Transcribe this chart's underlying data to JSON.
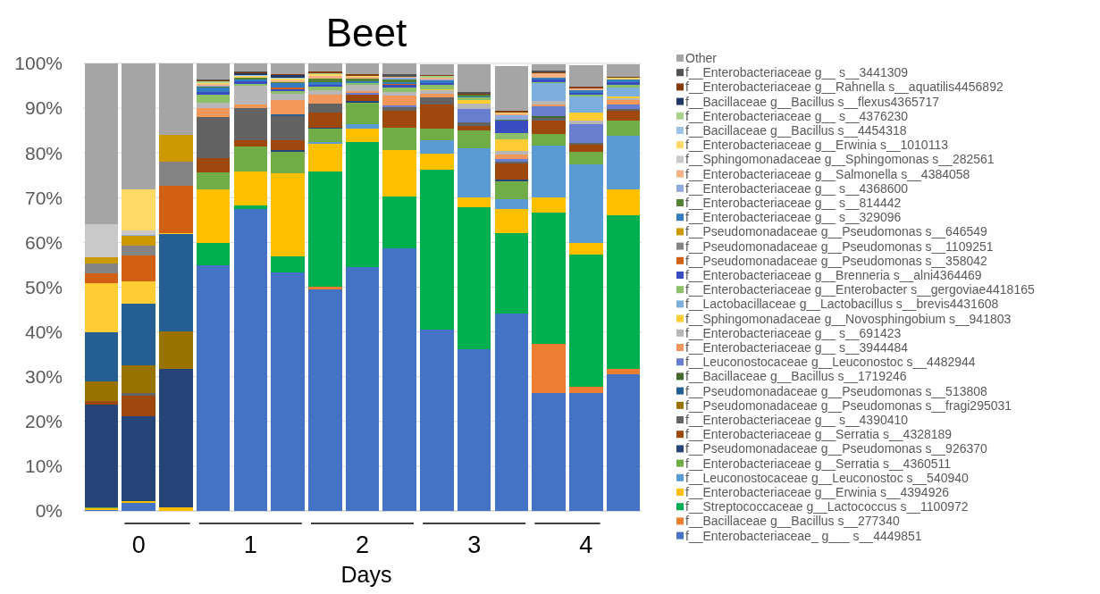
{
  "chart_data": {
    "type": "bar",
    "stacked": true,
    "title": "Beet",
    "xlabel": "Days",
    "categories": [
      null,
      "0",
      null,
      null,
      "1",
      null,
      null,
      "2",
      null,
      null,
      "3",
      null,
      null,
      "4",
      null
    ],
    "ylim": [
      0,
      100
    ],
    "yticks": [
      {
        "value": 0,
        "label": "0%"
      },
      {
        "value": 10,
        "label": "10%"
      },
      {
        "value": 20,
        "label": "20%"
      },
      {
        "value": 30,
        "label": "30%"
      },
      {
        "value": 40,
        "label": "40%"
      },
      {
        "value": 50,
        "label": "50%"
      },
      {
        "value": 60,
        "label": "60%"
      },
      {
        "value": 70,
        "label": "70%"
      },
      {
        "value": 80,
        "label": "80%"
      },
      {
        "value": 90,
        "label": "90%"
      },
      {
        "value": 100,
        "label": "100%"
      }
    ],
    "grid": "y",
    "legend": "right",
    "series": [
      {
        "name": "f__Enterobacteriaceae_ g___ s__4449851",
        "color": "#4472c4",
        "values": [
          0.2,
          1.8,
          0,
          54.8,
          67.5,
          53.2,
          49.6,
          54.4,
          58.7,
          40.5,
          36.1,
          44.1,
          26.3,
          26.3,
          30.6
        ]
      },
      {
        "name": "f__Bacillaceae g__Bacillus s__277340",
        "color": "#ed7d31",
        "values": [
          0,
          0,
          0,
          0,
          0,
          0,
          0.5,
          0,
          0,
          0,
          0,
          0,
          11.0,
          1.5,
          1.2
        ]
      },
      {
        "name": "f__Streptococcaceae g__Lactococcus s__1100972",
        "color": "#00b050",
        "values": [
          0,
          0,
          0,
          5.1,
          0.7,
          3.7,
          25.8,
          28.0,
          11.6,
          35.7,
          31.8,
          17.9,
          29.4,
          29.5,
          34.2
        ]
      },
      {
        "name": "f__Enterobacteriaceae g__Erwinia s__4394926",
        "color": "#ffc000",
        "values": [
          0.3,
          0.4,
          0.7,
          12.0,
          7.7,
          18.6,
          6.1,
          3.0,
          10.3,
          3.7,
          2.2,
          5.5,
          3.3,
          2.6,
          5.9
        ]
      },
      {
        "name": "f__Leuconostocaceae g__Leuconostoc s__540940",
        "color": "#5b9bd5",
        "values": [
          0,
          0,
          0,
          0,
          0,
          0,
          0.5,
          1.0,
          0,
          3.0,
          10.9,
          2.1,
          11.6,
          17.5,
          12.0
        ]
      },
      {
        "name": "f__Enterobacteriaceae g__Serratia s__4360511",
        "color": "#70ad47",
        "values": [
          0.3,
          0,
          0,
          3.7,
          5.5,
          4.8,
          2.9,
          4.8,
          5.1,
          2.5,
          4.1,
          4.0,
          2.7,
          2.9,
          3.3
        ]
      },
      {
        "name": "f__Pseudomonadaceae g__Pseudomonas s__926370",
        "color": "#264478",
        "values": [
          23.0,
          19.0,
          31.1,
          0,
          0,
          0.4,
          0.3,
          0.4,
          0,
          0,
          0,
          0.4,
          0,
          0,
          0
        ]
      },
      {
        "name": "f__Enterobacteriaceae g__Serratia s__4328189",
        "color": "#9e480e",
        "values": [
          0.8,
          4.5,
          0,
          3.3,
          1.5,
          2.1,
          3.3,
          1.4,
          3.7,
          5.5,
          1.0,
          3.6,
          2.9,
          1.5,
          2.3
        ]
      },
      {
        "name": "f__Enterobacteriaceae g__ s__4390410",
        "color": "#636363",
        "values": [
          0,
          0.7,
          0,
          9.1,
          7.2,
          5.5,
          2.1,
          0,
          0.8,
          1.5,
          0.7,
          0.4,
          0.7,
          0.4,
          0.3
        ]
      },
      {
        "name": "f__Pseudomonadaceae g__Pseudomonas s__fragi295031",
        "color": "#997300",
        "values": [
          4.4,
          6.2,
          8.4,
          0,
          0,
          0,
          0,
          0,
          0,
          0,
          0,
          0,
          0,
          0,
          0
        ]
      },
      {
        "name": "f__Pseudomonadaceae g__Pseudomonas s__513808",
        "color": "#255e91",
        "values": [
          10.9,
          13.8,
          21.6,
          0,
          0,
          0.3,
          0,
          0,
          0,
          0,
          0,
          0,
          0,
          0,
          0
        ]
      },
      {
        "name": "f__Bacillaceae g__Bacillus s__1719246",
        "color": "#43682b",
        "values": [
          0,
          0,
          0,
          0,
          0,
          0,
          0,
          0,
          0,
          0,
          0,
          0,
          0.4,
          0,
          0
        ]
      },
      {
        "name": "f__Leuconostocaceae g__Leuconostoc s__4482944",
        "color": "#6a7ed0",
        "values": [
          0,
          0,
          0,
          0,
          0,
          0,
          0,
          0.5,
          0.5,
          0,
          3.1,
          0.7,
          2.1,
          4.2,
          1.0
        ]
      },
      {
        "name": "f__Enterobacteriaceae g__ s__3944484",
        "color": "#f1975a",
        "values": [
          0,
          0,
          0,
          2.1,
          0.8,
          3.2,
          1.9,
          0.3,
          2.1,
          0.8,
          0,
          1.0,
          0.5,
          0,
          1.0
        ]
      },
      {
        "name": "f__Enterobacteriaceae g__ s__691423",
        "color": "#b7b7b7",
        "values": [
          0,
          0,
          0,
          1.1,
          4.1,
          1.5,
          1.0,
          1.4,
          0.9,
          0.8,
          1.2,
          0.8,
          0.8,
          0.8,
          0.5
        ]
      },
      {
        "name": "f__Sphingomonadaceae g__Novosphingobium s__941803",
        "color": "#ffcd33",
        "values": [
          11.0,
          4.8,
          0.3,
          0,
          0,
          0,
          0,
          0,
          0,
          0.3,
          0.8,
          2.5,
          0,
          1.9,
          0.3
        ]
      },
      {
        "name": "f__Lactobacillaceae g__Lactobacillus s__brevis4431608",
        "color": "#7cafdd",
        "values": [
          0,
          0,
          0,
          0,
          0,
          0,
          0,
          0,
          0,
          0,
          0,
          0,
          3.9,
          3.6,
          2.0
        ]
      },
      {
        "name": "f__Enterobacteriaceae g__Enterobacter s__gergoviae4418165",
        "color": "#8cc168",
        "values": [
          0,
          0,
          0,
          1.9,
          0.5,
          0.5,
          0.8,
          0.5,
          1.0,
          0.9,
          0.5,
          1.5,
          0.3,
          0.3,
          0.7
        ]
      },
      {
        "name": "f__Enterobacteriaceae g__Brenneria s__alni4364469",
        "color": "#3b4cc0",
        "values": [
          0,
          0,
          0,
          0.5,
          0.5,
          0.5,
          0.5,
          0,
          0.5,
          0.5,
          0,
          2.7,
          0.5,
          0.5,
          0.5
        ]
      },
      {
        "name": "f__Pseudomonadaceae g__Pseudomonas s__358042",
        "color": "#d26012",
        "values": [
          2.2,
          5.9,
          10.5,
          0,
          0,
          0.3,
          0,
          0,
          0.3,
          0,
          0,
          0,
          0,
          0,
          0
        ]
      },
      {
        "name": "f__Pseudomonadaceae g__Pseudomonas s__1109251",
        "color": "#848484",
        "values": [
          2.2,
          2.2,
          5.5,
          0,
          0,
          0,
          0,
          0,
          0,
          0,
          0,
          0,
          0,
          0,
          0
        ]
      },
      {
        "name": "f__Pseudomonadaceae g__Pseudomonas s__646549",
        "color": "#cc9a00",
        "values": [
          1.4,
          2.1,
          5.9,
          0,
          0,
          0,
          0,
          0,
          0,
          0,
          0,
          0,
          0,
          0,
          0
        ]
      },
      {
        "name": "f__Enterobacteriaceae g__ s__329096",
        "color": "#327dc2",
        "values": [
          0,
          0,
          0,
          1.0,
          0.5,
          1.0,
          0.5,
          0.4,
          0.3,
          0.5,
          0.3,
          0,
          0.5,
          0.5,
          0.7
        ]
      },
      {
        "name": "f__Enterobacteriaceae g__ s__814442",
        "color": "#548235",
        "values": [
          0,
          0,
          0,
          0.3,
          0.3,
          0.3,
          0.8,
          0.5,
          0.7,
          0,
          0.3,
          0.3,
          0,
          0,
          0
        ]
      },
      {
        "name": "f__Enterobacteriaceae g__ s__4368600",
        "color": "#8faadc",
        "values": [
          0,
          0.2,
          0,
          0.2,
          0,
          0,
          0,
          0,
          0.3,
          0.3,
          0,
          1.0,
          0,
          0,
          0
        ]
      },
      {
        "name": "f__Enterobacteriaceae g__Salmonella s__4384058",
        "color": "#f4b183",
        "values": [
          0,
          0,
          0,
          0.3,
          0,
          0.4,
          0.7,
          0.4,
          0.3,
          0.4,
          0,
          0.3,
          0.9,
          0.5,
          0
        ]
      },
      {
        "name": "f__Sphingomonadaceae g__Sphingomonas s__282561",
        "color": "#c9c9c9",
        "values": [
          7.3,
          1.1,
          0,
          0,
          0,
          0,
          0,
          0,
          0,
          0,
          0,
          0,
          0,
          0,
          0
        ]
      },
      {
        "name": "f__Enterobacteriaceae g__Erwinia s__1010113",
        "color": "#ffd966",
        "values": [
          0,
          9.2,
          0,
          0.3,
          0.4,
          0.3,
          0.3,
          0.3,
          0,
          0,
          0,
          0.3,
          0,
          0,
          0.3
        ]
      },
      {
        "name": "f__Bacillaceae g__Bacillus s__4454318",
        "color": "#9dc3e6",
        "values": [
          0,
          0,
          0,
          0,
          0.3,
          0.3,
          0,
          0,
          0,
          0,
          0,
          0,
          0,
          0,
          0
        ]
      },
      {
        "name": "f__Enterobacteriaceae g__ s__4376230",
        "color": "#a9d18e",
        "values": [
          0,
          0,
          0,
          0.3,
          0,
          0,
          0.3,
          0,
          0,
          0.3,
          0,
          0,
          0,
          0,
          0
        ]
      },
      {
        "name": "f__Bacillaceae g__Bacillus s__flexus4365717",
        "color": "#1f3864",
        "values": [
          0,
          0,
          0,
          0,
          0.3,
          0.5,
          0,
          0,
          0,
          0,
          0,
          0,
          0,
          0,
          0
        ]
      },
      {
        "name": "f__Enterobacteriaceae g__Rahnella s__aquatilis4456892",
        "color": "#843c0c",
        "values": [
          0,
          0,
          0,
          0.2,
          0.2,
          0.3,
          0.3,
          0.3,
          0,
          0.3,
          0.3,
          0.3,
          0.3,
          0.3,
          0.3
        ]
      },
      {
        "name": "f__Enterobacteriaceae g__ s__3441309",
        "color": "#525252",
        "values": [
          0,
          0,
          0,
          0.3,
          0.3,
          0,
          0,
          0,
          0.5,
          0,
          0.3,
          0,
          0.3,
          0,
          0
        ]
      },
      {
        "name": "Other",
        "color": "#a5a5a5",
        "values": [
          36.0,
          28.1,
          16.0,
          3.5,
          1.7,
          2.3,
          1.8,
          2.4,
          2.4,
          2.4,
          6.3,
          10.0,
          1.5,
          4.8,
          2.8
        ]
      }
    ]
  }
}
